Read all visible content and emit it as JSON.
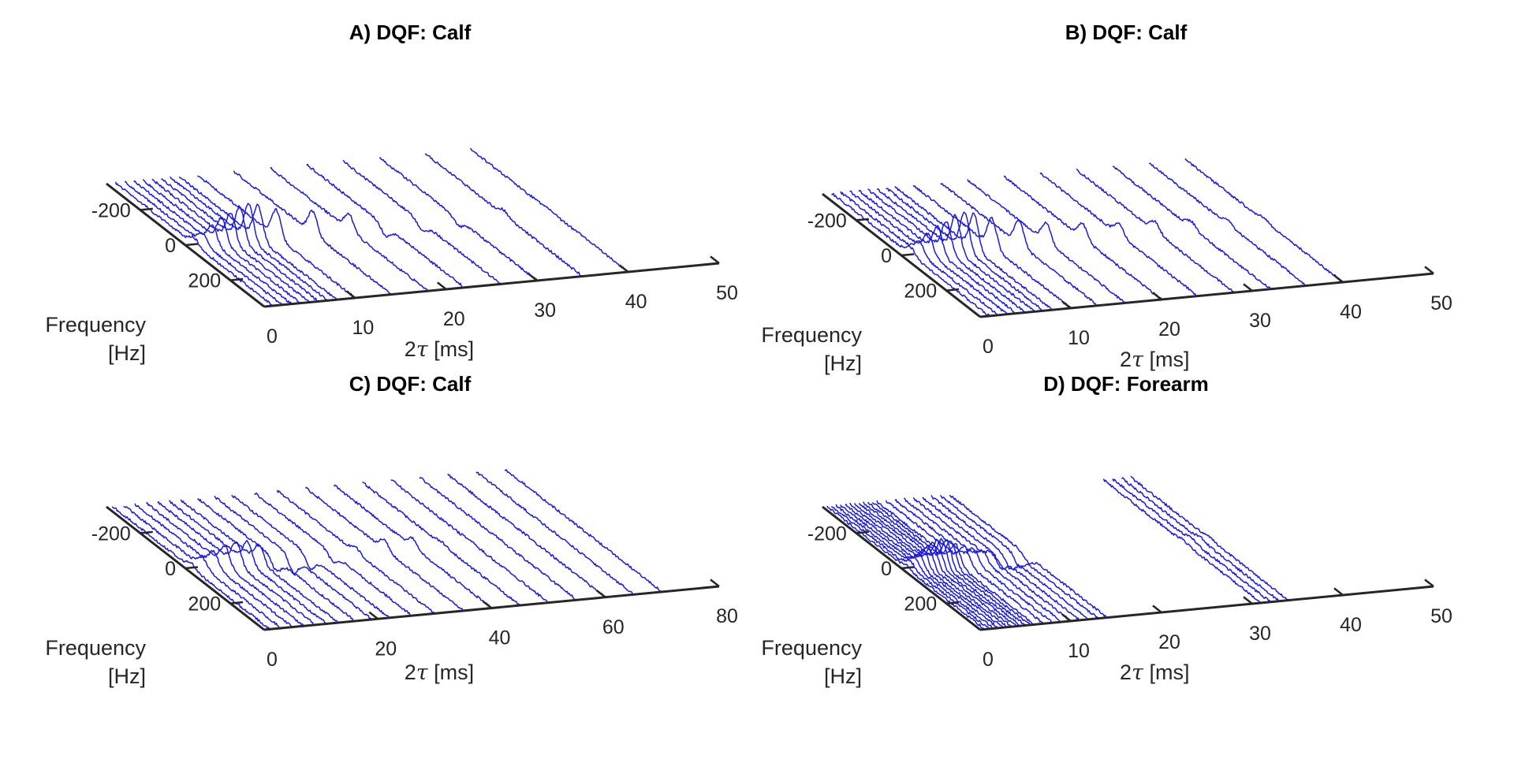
{
  "chart_data": [
    {
      "type": "waterfall",
      "title": "A) DQF: Calf",
      "xlabel_prefix": "2",
      "xlabel_symbol": "τ",
      "xlabel_suffix": " [ms]",
      "ylabel_lines": [
        "Frequency",
        "[Hz]"
      ],
      "xlim": [
        0,
        50
      ],
      "ylim": [
        -350,
        350
      ],
      "xticks": [
        0,
        10,
        20,
        30,
        40,
        50
      ],
      "yticks": [
        -200,
        0,
        200
      ],
      "series_color": "#1a1ae0",
      "traces": [
        {
          "t": 1,
          "amp": 8,
          "sign": 1
        },
        {
          "t": 2,
          "amp": 12,
          "sign": 1
        },
        {
          "t": 3,
          "amp": 22,
          "sign": 1
        },
        {
          "t": 4,
          "amp": 30,
          "sign": 1
        },
        {
          "t": 5,
          "amp": 36,
          "sign": 1
        },
        {
          "t": 6,
          "amp": 42,
          "sign": 1
        },
        {
          "t": 7,
          "amp": 44,
          "sign": 1
        },
        {
          "t": 8,
          "amp": 42,
          "sign": 1
        },
        {
          "t": 10,
          "amp": 34,
          "sign": 1
        },
        {
          "t": 14,
          "amp": 28,
          "sign": 1
        },
        {
          "t": 18,
          "amp": 20,
          "sign": 1
        },
        {
          "t": 22,
          "amp": 12,
          "sign": -1
        },
        {
          "t": 26,
          "amp": 10,
          "sign": -1
        },
        {
          "t": 30,
          "amp": 8,
          "sign": -1
        },
        {
          "t": 35,
          "amp": 6,
          "sign": 1
        },
        {
          "t": 40,
          "amp": 2,
          "sign": 1
        }
      ]
    },
    {
      "type": "waterfall",
      "title": "B) DQF: Calf",
      "xlabel_prefix": "2",
      "xlabel_symbol": "τ",
      "xlabel_suffix": " [ms]",
      "ylabel_lines": [
        "Frequency",
        "[Hz]"
      ],
      "xlim": [
        0,
        50
      ],
      "ylim": [
        -350,
        350
      ],
      "xticks": [
        0,
        10,
        20,
        30,
        40,
        50
      ],
      "yticks": [
        -200,
        0,
        200
      ],
      "series_color": "#1a1ae0",
      "traces": [
        {
          "t": 1,
          "amp": 10,
          "sign": 1
        },
        {
          "t": 2,
          "amp": 16,
          "sign": 1
        },
        {
          "t": 3,
          "amp": 24,
          "sign": 1
        },
        {
          "t": 4,
          "amp": 32,
          "sign": 1
        },
        {
          "t": 5,
          "amp": 38,
          "sign": 1
        },
        {
          "t": 6,
          "amp": 44,
          "sign": 1
        },
        {
          "t": 7,
          "amp": 46,
          "sign": 1
        },
        {
          "t": 8,
          "amp": 44,
          "sign": 1
        },
        {
          "t": 10,
          "amp": 36,
          "sign": 1
        },
        {
          "t": 13,
          "amp": 30,
          "sign": 1
        },
        {
          "t": 16,
          "amp": 24,
          "sign": 1
        },
        {
          "t": 20,
          "amp": 18,
          "sign": 1
        },
        {
          "t": 24,
          "amp": 14,
          "sign": 1
        },
        {
          "t": 28,
          "amp": 12,
          "sign": 1
        },
        {
          "t": 32,
          "amp": 8,
          "sign": 1
        },
        {
          "t": 36,
          "amp": 6,
          "sign": 1
        },
        {
          "t": 40,
          "amp": 4,
          "sign": 1
        }
      ]
    },
    {
      "type": "waterfall",
      "title": "C) DQF: Calf",
      "xlabel_prefix": "2",
      "xlabel_symbol": "τ",
      "xlabel_suffix": " [ms]",
      "ylabel_lines": [
        "Frequency",
        "[Hz]"
      ],
      "xlim": [
        0,
        80
      ],
      "ylim": [
        -350,
        350
      ],
      "xticks": [
        0,
        20,
        40,
        60,
        80
      ],
      "yticks": [
        -200,
        0,
        200
      ],
      "series_color": "#1a1ae0",
      "traces": [
        {
          "t": 1,
          "amp": 6,
          "sign": 1
        },
        {
          "t": 3,
          "amp": 12,
          "sign": 1
        },
        {
          "t": 5,
          "amp": 18,
          "sign": 1
        },
        {
          "t": 7,
          "amp": 24,
          "sign": 1
        },
        {
          "t": 9,
          "amp": 28,
          "sign": 1
        },
        {
          "t": 11,
          "amp": 26,
          "sign": 1
        },
        {
          "t": 13,
          "amp": 20,
          "sign": 1
        },
        {
          "t": 16,
          "amp": 14,
          "sign": -1
        },
        {
          "t": 19,
          "amp": 18,
          "sign": -1
        },
        {
          "t": 22,
          "amp": 16,
          "sign": -1
        },
        {
          "t": 26,
          "amp": 10,
          "sign": -1
        },
        {
          "t": 30,
          "amp": 6,
          "sign": 1
        },
        {
          "t": 35,
          "amp": 12,
          "sign": 1
        },
        {
          "t": 40,
          "amp": 10,
          "sign": 1
        },
        {
          "t": 45,
          "amp": 3,
          "sign": 1
        },
        {
          "t": 50,
          "amp": 2,
          "sign": 1
        },
        {
          "t": 55,
          "amp": 1,
          "sign": 1
        },
        {
          "t": 60,
          "amp": 1,
          "sign": 1
        },
        {
          "t": 65,
          "amp": 0,
          "sign": 1
        },
        {
          "t": 70,
          "amp": 0,
          "sign": 1
        }
      ]
    },
    {
      "type": "waterfall",
      "title": "D) DQF: Forearm",
      "xlabel_prefix": "2",
      "xlabel_symbol": "τ",
      "xlabel_suffix": " [ms]",
      "ylabel_lines": [
        "Frequency",
        "[Hz]"
      ],
      "xlim": [
        0,
        50
      ],
      "ylim": [
        -350,
        350
      ],
      "xticks": [
        0,
        10,
        20,
        30,
        40,
        50
      ],
      "yticks": [
        -200,
        0,
        200
      ],
      "series_color": "#1a1ae0",
      "traces": [
        {
          "t": 0.5,
          "amp": 4,
          "sign": 1
        },
        {
          "t": 1,
          "amp": 8,
          "sign": 1
        },
        {
          "t": 1.5,
          "amp": 12,
          "sign": 1
        },
        {
          "t": 2,
          "amp": 16,
          "sign": 1
        },
        {
          "t": 2.5,
          "amp": 20,
          "sign": 1
        },
        {
          "t": 3,
          "amp": 24,
          "sign": 1
        },
        {
          "t": 3.5,
          "amp": 28,
          "sign": 1
        },
        {
          "t": 4,
          "amp": 30,
          "sign": 1
        },
        {
          "t": 4.5,
          "amp": 32,
          "sign": 1
        },
        {
          "t": 5,
          "amp": 30,
          "sign": 1
        },
        {
          "t": 5.5,
          "amp": 28,
          "sign": 1
        },
        {
          "t": 6,
          "amp": 24,
          "sign": 1
        },
        {
          "t": 7,
          "amp": 20,
          "sign": 1
        },
        {
          "t": 8,
          "amp": 16,
          "sign": 1
        },
        {
          "t": 9,
          "amp": 12,
          "sign": 1
        },
        {
          "t": 10,
          "amp": 10,
          "sign": 1
        },
        {
          "t": 11,
          "amp": 12,
          "sign": -1
        },
        {
          "t": 12,
          "amp": 14,
          "sign": -1
        },
        {
          "t": 13,
          "amp": 12,
          "sign": -1
        },
        {
          "t": 14,
          "amp": 8,
          "sign": -1
        },
        {
          "t": 31,
          "amp": 3,
          "sign": 1
        },
        {
          "t": 32,
          "amp": 3,
          "sign": 1
        },
        {
          "t": 33,
          "amp": 3,
          "sign": 1
        },
        {
          "t": 34,
          "amp": 3,
          "sign": 1
        }
      ]
    }
  ]
}
